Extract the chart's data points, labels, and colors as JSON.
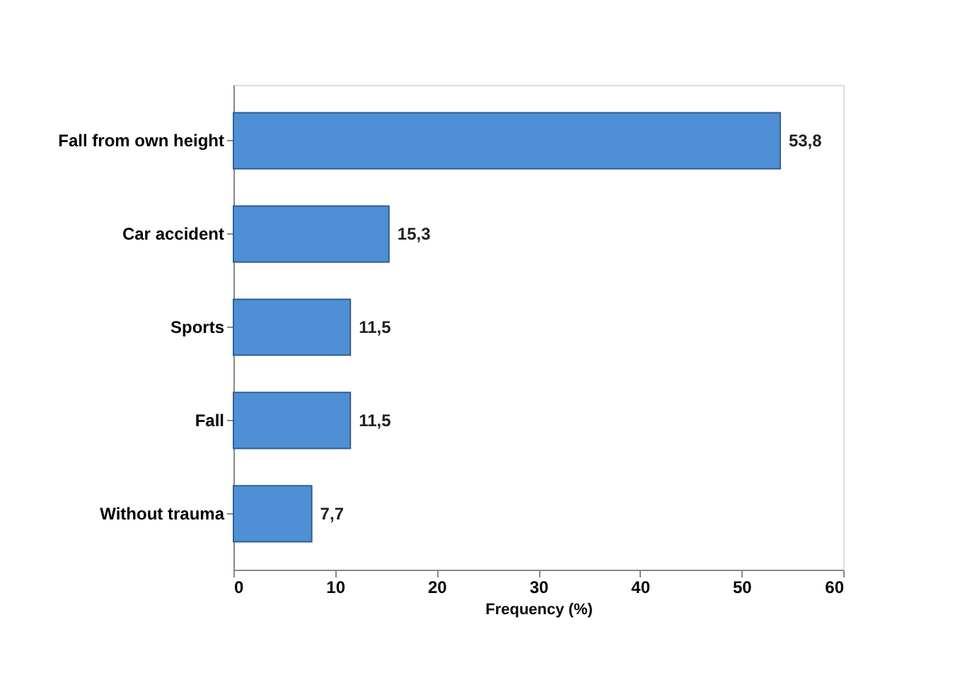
{
  "chart_data": {
    "type": "bar",
    "orientation": "horizontal",
    "categories": [
      "Fall from own height",
      "Car accident",
      "Sports",
      "Fall",
      "Without trauma"
    ],
    "values": [
      53.8,
      15.3,
      11.5,
      11.5,
      7.7
    ],
    "value_labels": [
      "53,8",
      "15,3",
      "11,5",
      "11,5",
      "7,7"
    ],
    "color": "#4f8fd6",
    "xlabel": "Frequency (%)",
    "xlim": [
      0,
      60
    ],
    "xticks": [
      0,
      10,
      20,
      30,
      40,
      50,
      60
    ],
    "grid": false
  }
}
